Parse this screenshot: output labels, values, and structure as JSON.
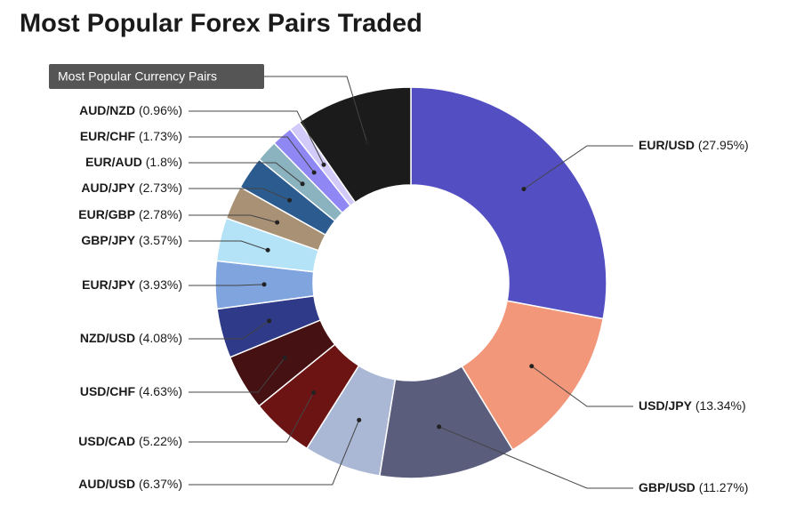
{
  "chart_data": {
    "type": "pie",
    "donut": true,
    "title": "Most Popular Forex Pairs Traded",
    "categories": [
      "EUR/USD",
      "USD/JPY",
      "GBP/USD",
      "AUD/USD",
      "USD/CAD",
      "USD/CHF",
      "NZD/USD",
      "EUR/JPY",
      "GBP/JPY",
      "EUR/GBP",
      "AUD/JPY",
      "EUR/AUD",
      "EUR/CHF",
      "AUD/NZD",
      "Most Popular Currency Pairs"
    ],
    "values": [
      27.95,
      13.34,
      11.27,
      6.37,
      5.22,
      4.63,
      4.08,
      3.93,
      3.57,
      2.78,
      2.73,
      1.8,
      1.73,
      0.96,
      9.64
    ],
    "value_labels": [
      "(27.95%)",
      "(13.34%)",
      "(11.27%)",
      "(6.37%)",
      "(5.22%)",
      "(4.63%)",
      "(4.08%)",
      "(3.93%)",
      "(3.57%)",
      "(2.78%)",
      "(2.73%)",
      "(1.8%)",
      "(1.73%)",
      "(0.96%)",
      null
    ],
    "colors": [
      "#534fc2",
      "#f2977a",
      "#5a5d7c",
      "#aab7d5",
      "#6c1414",
      "#461112",
      "#2f3a88",
      "#80a5de",
      "#b4e3f8",
      "#a99175",
      "#2c5b8f",
      "#8bb2bf",
      "#8f87f3",
      "#d2cbf9",
      "#1b1b1b"
    ]
  }
}
